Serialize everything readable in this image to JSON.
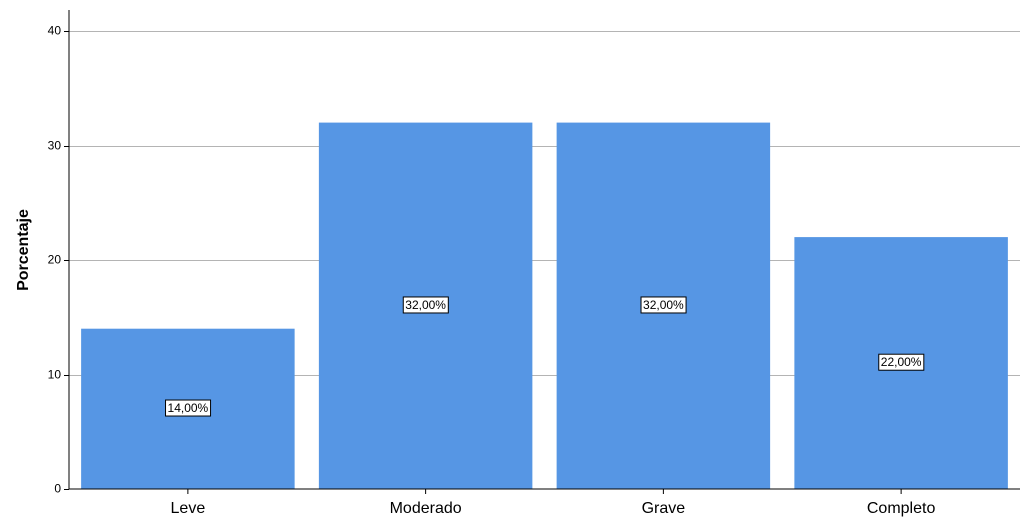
{
  "chart_data": {
    "type": "bar",
    "categories": [
      "Leve",
      "Moderado",
      "Grave",
      "Completo"
    ],
    "values": [
      14,
      32,
      32,
      22
    ],
    "data_labels": [
      "14,00%",
      "32,00%",
      "32,00%",
      "22,00%"
    ],
    "title": "",
    "xlabel": "",
    "ylabel": "Porcentaje",
    "ylim": [
      0,
      40
    ],
    "yticks": [
      0,
      10,
      20,
      30,
      40
    ],
    "grid": true,
    "bar_color": "#5696e4",
    "grid_color": "#b4b4b4",
    "label_box_color": "#ffffff"
  }
}
